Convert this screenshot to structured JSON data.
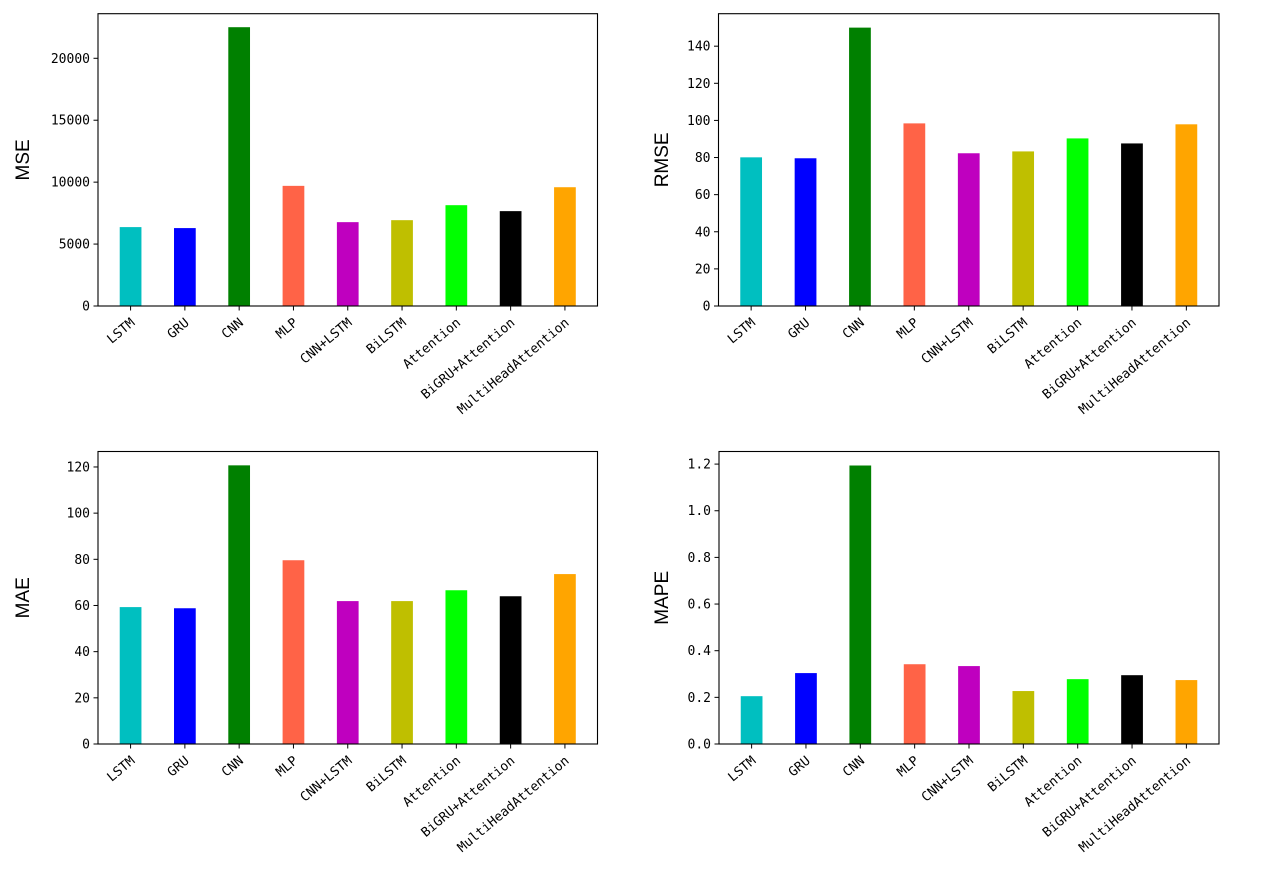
{
  "chart_data": [
    {
      "type": "bar",
      "title": "",
      "xlabel": "",
      "ylabel": "MSE",
      "ylim": [
        0,
        23600
      ],
      "yticks": [
        0,
        5000,
        10000,
        15000,
        20000
      ],
      "ytick_labels": [
        "0",
        "5000",
        "10000",
        "15000",
        "20000"
      ],
      "grid": false,
      "categories": [
        "LSTM",
        "GRU",
        "CNN",
        "MLP",
        "CNN+LSTM",
        "BiLSTM",
        "Attention",
        "BiGRU+Attention",
        "MultiHeadAttention"
      ],
      "values": [
        6370,
        6290,
        22510,
        9700,
        6770,
        6930,
        8140,
        7660,
        9590
      ]
    },
    {
      "type": "bar",
      "title": "",
      "xlabel": "",
      "ylabel": "RMSE",
      "ylim": [
        0,
        157.5
      ],
      "yticks": [
        0,
        20,
        40,
        60,
        80,
        100,
        120,
        140
      ],
      "ytick_labels": [
        "0",
        "20",
        "40",
        "60",
        "80",
        "100",
        "120",
        "140"
      ],
      "grid": false,
      "categories": [
        "LSTM",
        "GRU",
        "CNN",
        "MLP",
        "CNN+LSTM",
        "BiLSTM",
        "Attention",
        "BiGRU+Attention",
        "MultiHeadAttention"
      ],
      "values": [
        80.1,
        79.6,
        150.0,
        98.4,
        82.3,
        83.3,
        90.3,
        87.6,
        97.9
      ]
    },
    {
      "type": "bar",
      "title": "",
      "xlabel": "",
      "ylabel": "MAE",
      "ylim": [
        0,
        126.7
      ],
      "yticks": [
        0,
        20,
        40,
        60,
        80,
        100,
        120
      ],
      "ytick_labels": [
        "0",
        "20",
        "40",
        "60",
        "80",
        "100",
        "120"
      ],
      "grid": false,
      "categories": [
        "LSTM",
        "GRU",
        "CNN",
        "MLP",
        "CNN+LSTM",
        "BiLSTM",
        "Attention",
        "BiGRU+Attention",
        "MultiHeadAttention"
      ],
      "values": [
        59.3,
        58.8,
        120.7,
        79.6,
        61.9,
        61.9,
        66.6,
        64.0,
        73.6
      ]
    },
    {
      "type": "bar",
      "title": "",
      "xlabel": "",
      "ylabel": "MAPE",
      "ylim": [
        0,
        1.254
      ],
      "yticks": [
        0.0,
        0.2,
        0.4,
        0.6,
        0.8,
        1.0,
        1.2
      ],
      "ytick_labels": [
        "0.0",
        "0.2",
        "0.4",
        "0.6",
        "0.8",
        "1.0",
        "1.2"
      ],
      "grid": false,
      "categories": [
        "LSTM",
        "GRU",
        "CNN",
        "MLP",
        "CNN+LSTM",
        "BiLSTM",
        "Attention",
        "BiGRU+Attention",
        "MultiHeadAttention"
      ],
      "values": [
        0.205,
        0.304,
        1.194,
        0.342,
        0.334,
        0.227,
        0.278,
        0.295,
        0.274
      ]
    }
  ],
  "bar_colors": [
    "#00bfc0",
    "#0000ff",
    "#008000",
    "#ff6347",
    "#bf00bf",
    "#bfbf00",
    "#00ff00",
    "#000000",
    "#ffa500"
  ]
}
